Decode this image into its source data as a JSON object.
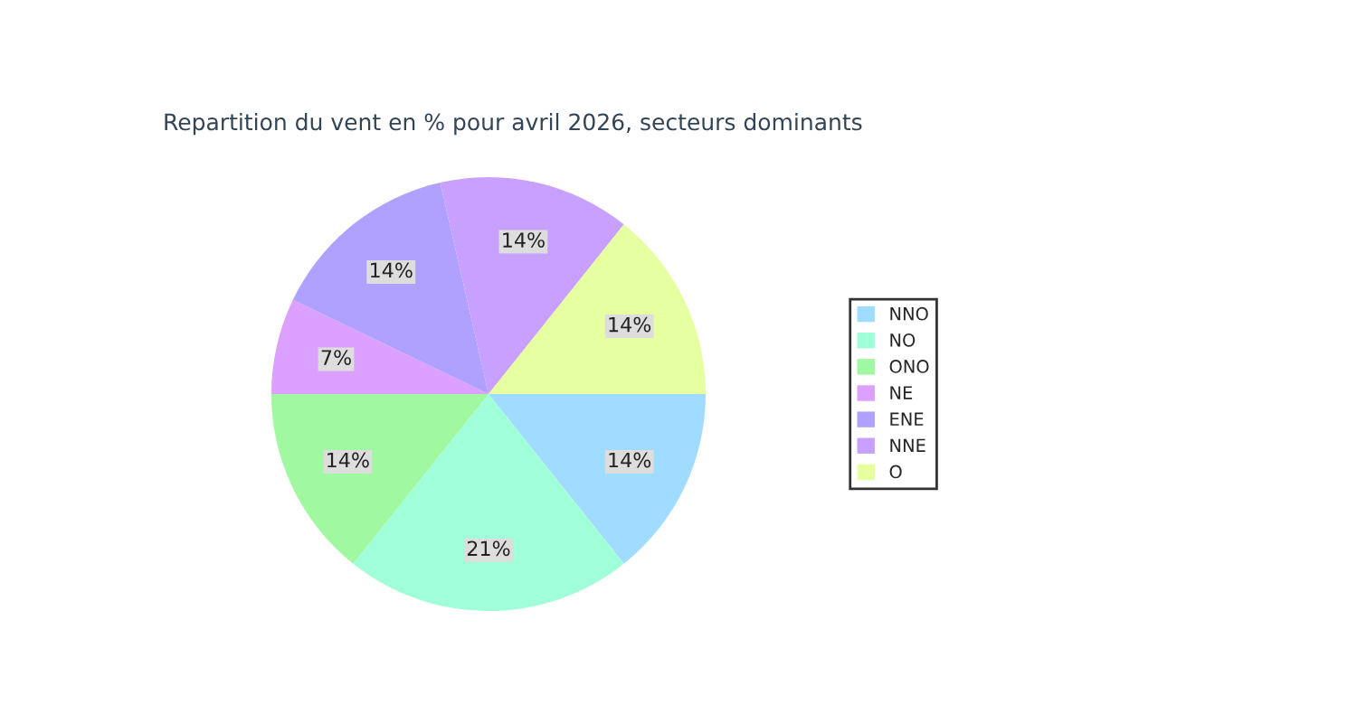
{
  "chart_data": {
    "type": "pie",
    "title": "Repartition du vent en % pour avril 2026, secteurs dominants",
    "categories": [
      "NNO",
      "NO",
      "ONO",
      "NE",
      "ENE",
      "NNE",
      "O"
    ],
    "values": [
      14,
      21,
      14,
      7,
      14,
      14,
      14
    ],
    "colors": [
      "#a0dcff",
      "#a0ffd8",
      "#a0f8a0",
      "#dca0ff",
      "#b0a0ff",
      "#c8a0ff",
      "#e6ffa0"
    ],
    "value_labels": [
      "14%",
      "21%",
      "14%",
      "7%",
      "14%",
      "14%",
      "14%"
    ],
    "legend": "right"
  }
}
